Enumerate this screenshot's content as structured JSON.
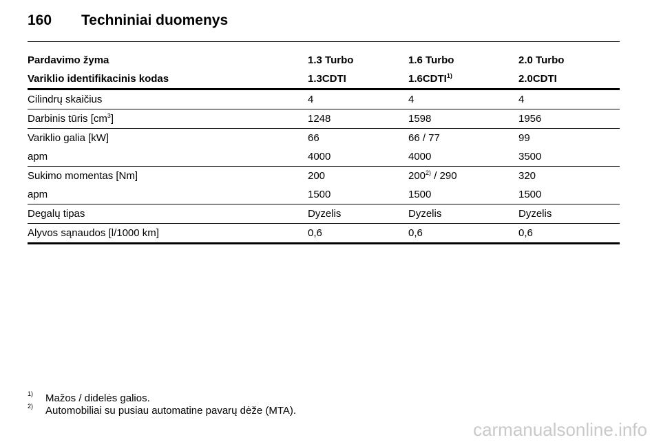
{
  "header": {
    "page_number": "160",
    "title": "Techniniai duomenys"
  },
  "table": {
    "header_rows": [
      [
        "Pardavimo žyma",
        "1.3 Turbo",
        "1.6 Turbo",
        "2.0 Turbo"
      ],
      [
        "Variklio identifikacinis kodas",
        "1.3CDTI",
        {
          "text": "1.6CDTI",
          "sup": "1)"
        },
        "2.0CDTI"
      ]
    ],
    "groups": [
      [
        [
          "Cilindrų skaičius",
          "4",
          "4",
          "4"
        ]
      ],
      [
        [
          {
            "text": "Darbinis tūris [cm",
            "sup": "3",
            "after": "]"
          },
          "1248",
          "1598",
          "1956"
        ]
      ],
      [
        [
          "Variklio galia [kW]",
          "66",
          "66 / 77",
          "99"
        ],
        [
          "apm",
          "4000",
          "4000",
          "3500"
        ]
      ],
      [
        [
          "Sukimo momentas [Nm]",
          "200",
          {
            "text": "200",
            "sup": "2)",
            "after": " / 290"
          },
          "320"
        ],
        [
          "apm",
          "1500",
          "1500",
          "1500"
        ]
      ],
      [
        [
          "Degalų tipas",
          "Dyzelis",
          "Dyzelis",
          "Dyzelis"
        ]
      ],
      [
        [
          "Alyvos sąnaudos [l/1000 km]",
          "0,6",
          "0,6",
          "0,6"
        ]
      ]
    ]
  },
  "footnotes": [
    {
      "marker": "1)",
      "text": "Mažos / didelės galios."
    },
    {
      "marker": "2)",
      "text": "Automobiliai su pusiau automatine pavarų dėže (MTA)."
    }
  ],
  "watermark": "carmanualsonline.info"
}
